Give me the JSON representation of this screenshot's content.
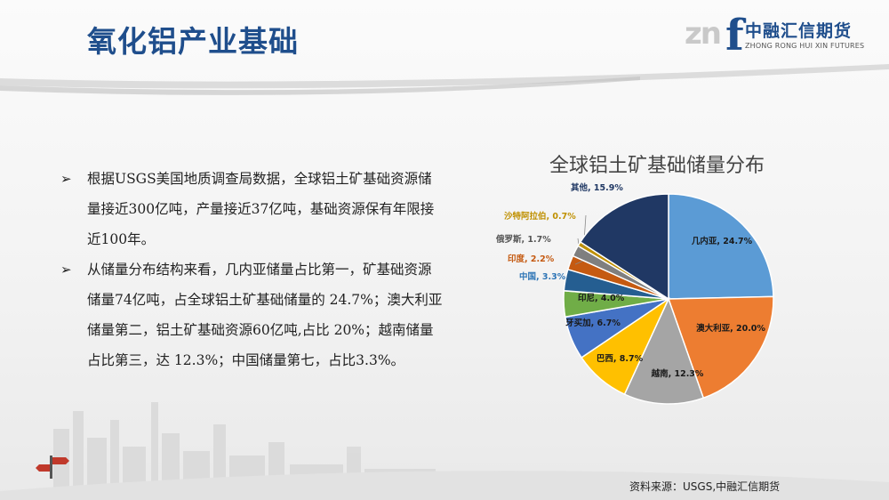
{
  "slide": {
    "title": "氧化铝产业基础",
    "source": "资料来源：USGS,中融汇信期货"
  },
  "logo": {
    "mark_left": "zn",
    "mark_right": "f",
    "name_cn": "中融汇信期货",
    "name_en": "ZHONG RONG HUI XIN FUTURES"
  },
  "bullets": {
    "marker": "➢",
    "items": [
      {
        "text": "根据USGS美国地质调查局数据，全球铝土矿基础资源储量接近300亿吨，产量接近37亿吨，基础资源保有年限接近100年。"
      },
      {
        "text": "从储量分布结构来看，几内亚储量占比第一，矿基础资源储量74亿吨，占全球铝土矿基础储量的 24.7%；澳大利亚储量第二，铝土矿基础资源60亿吨,占比 20%；越南储量占比第三，达 12.3%；中国储量第七，占比3.3%。"
      }
    ]
  },
  "colors": {
    "title": "#1f4e8c",
    "accent_red": "#c0392b"
  },
  "chart_data": {
    "type": "pie",
    "title": "全球铝土矿基础储量分布",
    "slices": [
      {
        "label": "几内亚",
        "value": 24.7,
        "display": "几内亚, 24.7%",
        "color": "#5b9bd5",
        "label_color": "#1a1a1a"
      },
      {
        "label": "澳大利亚",
        "value": 20.0,
        "display": "澳大利亚, 20.0%",
        "color": "#ed7d31",
        "label_color": "#1a1a1a"
      },
      {
        "label": "越南",
        "value": 12.3,
        "display": "越南, 12.3%",
        "color": "#a5a5a5",
        "label_color": "#1a1a1a"
      },
      {
        "label": "巴西",
        "value": 8.7,
        "display": "巴西, 8.7%",
        "color": "#ffc000",
        "label_color": "#1a1a1a"
      },
      {
        "label": "牙买加",
        "value": 6.7,
        "display": "牙买加, 6.7%",
        "color": "#4472c4",
        "label_color": "#1a1a1a"
      },
      {
        "label": "印尼",
        "value": 4.0,
        "display": "印尼, 4.0%",
        "color": "#70ad47",
        "label_color": "#1a1a1a"
      },
      {
        "label": "中国",
        "value": 3.3,
        "display": "中国, 3.3%",
        "color": "#255e91",
        "label_color": "#2e75b6"
      },
      {
        "label": "印度",
        "value": 2.2,
        "display": "印度, 2.2%",
        "color": "#c55a11",
        "label_color": "#c55a11"
      },
      {
        "label": "俄罗斯",
        "value": 1.7,
        "display": "俄罗斯, 1.7%",
        "color": "#7f7f7f",
        "label_color": "#555555"
      },
      {
        "label": "沙特阿拉伯",
        "value": 0.7,
        "display": "沙特阿拉伯, 0.7%",
        "color": "#bf9000",
        "label_color": "#bf9000"
      },
      {
        "label": "其他",
        "value": 15.9,
        "display": "其他, 15.9%",
        "color": "#203864",
        "label_color": "#203864"
      }
    ]
  }
}
